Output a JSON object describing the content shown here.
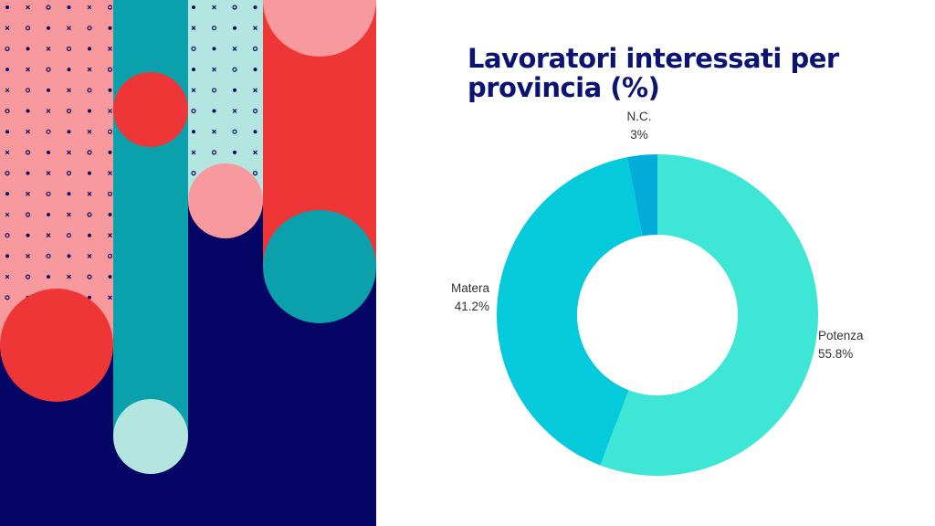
{
  "chart_data": {
    "type": "pie",
    "variant": "donut",
    "title": "Lavoratori interessati per provincia (%)",
    "slices": [
      {
        "label": "Potenza",
        "value": 55.8,
        "value_label": "55.8%",
        "color": "#3ee6d6"
      },
      {
        "label": "Matera",
        "value": 41.2,
        "value_label": "41.2%",
        "color": "#04cadb"
      },
      {
        "label": "N.C.",
        "value": 3,
        "value_label": "3%",
        "color": "#03add9"
      }
    ],
    "legend": "none"
  },
  "colors": {
    "navy": "#050565",
    "teal": "#0aa1ad",
    "red": "#ef3636",
    "pink": "#f89a9d",
    "mint": "#b3e6e0",
    "title": "#0b1470"
  }
}
